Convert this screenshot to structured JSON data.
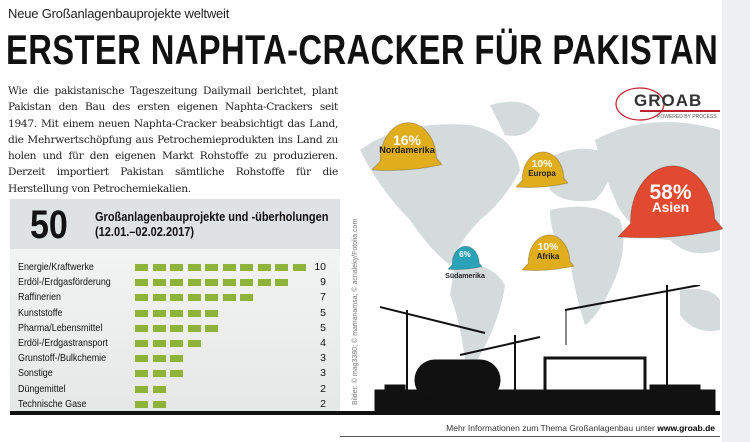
{
  "kicker": "Neue Großanlagenbauprojekte weltweit",
  "title": "ERSTER NAPHTA-CRACKER FÜR PAKISTAN",
  "body": "Wie die pakistanische Tageszeitung Dailymail berichtet, plant Pakistan den Bau des ersten eigenen Naphta-Crackers seit 1947. Mit einem neuen Naphta-Cracker beabsichtigt das Land, die Mehrwertschöpfung aus Petrochemieprodukten ins Land zu holen und für den eigenen Markt Rohstoffe zu produzieren. Derzeit importiert Pakistan sämtliche Rohstoffe für die Herstellung von Petrochemiekalien.",
  "logo": {
    "name": "GROAB",
    "tagline": "POWERED BY PROCESS"
  },
  "credit": "Bilder: © mag3380; © mamanamsa; © acnaleky/Fotolia.com",
  "footer": {
    "text": "Mehr Informationen zum Thema Großanlagenbau unter ",
    "link": "www.groab.de"
  },
  "colors": {
    "bar": "#8fb33a",
    "helmet_gold": "#e0ad1c",
    "helmet_red": "#e14a30",
    "helmet_teal": "#2aa3b8",
    "map": "#d5dadb"
  },
  "chart_data": [
    {
      "type": "bar",
      "orientation": "horizontal",
      "total": "50",
      "title": "Großanlagenbauprojekte und -überholungen",
      "subtitle": "(12.01.–02.02.2017)",
      "categories": [
        "Energie/Kraftwerke",
        "Erdöl-/Erdgasförderung",
        "Raffinerien",
        "Kunststoffe",
        "Pharma/Lebensmittel",
        "Erdöl-/Erdgastransport",
        "Grunstoff-/Bulkchemie",
        "Sonstige",
        "Düngemittel",
        "Technische Gase"
      ],
      "values": [
        10,
        9,
        7,
        5,
        5,
        4,
        3,
        3,
        2,
        2
      ]
    },
    {
      "type": "pie",
      "style": "helmets on world map",
      "categories": [
        "Nordamerika",
        "Europa",
        "Asien",
        "Südamerika",
        "Afrika"
      ],
      "values": [
        16,
        10,
        58,
        6,
        10
      ],
      "labels": [
        "16%",
        "10%",
        "58%",
        "6%",
        "10%"
      ]
    }
  ]
}
